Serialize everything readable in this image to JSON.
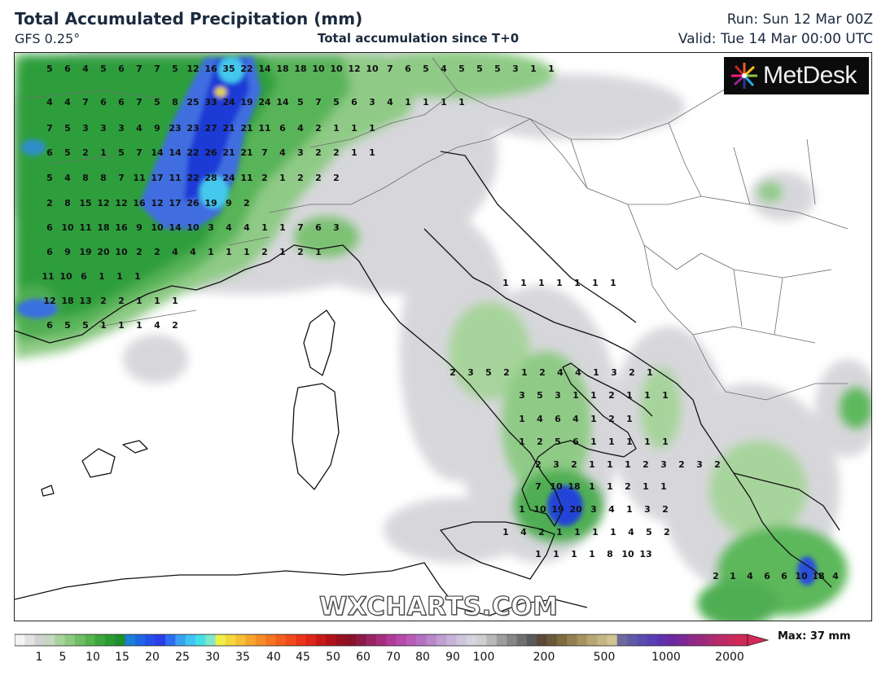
{
  "header": {
    "title": "Total Accumulated Precipitation (mm)",
    "model": "GFS 0.25°",
    "subtitle": "Total accumulation since T+0",
    "run": "Run: Sun 12 Mar 00Z",
    "valid": "Valid: Tue 14 Mar 00:00 UTC"
  },
  "logo": {
    "text": "MetDesk"
  },
  "watermark": "WXCHARTS.COM",
  "scale": {
    "max_label": "Max: 37 mm",
    "ticks": [
      "1",
      "5",
      "10",
      "15",
      "20",
      "25",
      "30",
      "35",
      "40",
      "45",
      "50",
      "60",
      "70",
      "80",
      "90",
      "100",
      "200",
      "500",
      "1000",
      "2000"
    ]
  },
  "map": {
    "values": [
      [
        "5",
        "6",
        "4",
        "5",
        "6",
        "7",
        "7",
        "5",
        "12",
        "16",
        "35",
        "22",
        "14",
        "18",
        "18",
        "10",
        "10",
        "12",
        "10",
        "7",
        "6",
        "5",
        "4",
        "5",
        "5",
        "5",
        "3",
        "1",
        "1"
      ],
      [
        "4",
        "4",
        "7",
        "6",
        "6",
        "7",
        "5",
        "8",
        "25",
        "33",
        "24",
        "19",
        "24",
        "14",
        "5",
        "7",
        "5",
        "6",
        "3",
        "4",
        "1",
        "1",
        "1",
        "1"
      ],
      [
        "7",
        "5",
        "3",
        "3",
        "3",
        "4",
        "9",
        "23",
        "23",
        "27",
        "21",
        "21",
        "11",
        "6",
        "4",
        "2",
        "1",
        "1",
        "1"
      ],
      [
        "6",
        "5",
        "2",
        "1",
        "5",
        "7",
        "14",
        "14",
        "22",
        "26",
        "21",
        "21",
        "7",
        "4",
        "3",
        "2",
        "2",
        "1",
        "1"
      ],
      [
        "5",
        "4",
        "8",
        "8",
        "7",
        "11",
        "17",
        "11",
        "22",
        "28",
        "24",
        "11",
        "2",
        "1",
        "2",
        "2",
        "2"
      ],
      [
        "2",
        "8",
        "15",
        "12",
        "12",
        "16",
        "12",
        "17",
        "26",
        "19",
        "9",
        "2"
      ],
      [
        "6",
        "10",
        "11",
        "18",
        "16",
        "9",
        "10",
        "14",
        "10",
        "3",
        "4",
        "4",
        "1",
        "1",
        "7",
        "6",
        "3"
      ],
      [
        "6",
        "9",
        "19",
        "20",
        "10",
        "2",
        "2",
        "4",
        "4",
        "1",
        "1",
        "1",
        "2",
        "1",
        "2",
        "1"
      ],
      [
        "11",
        "10",
        "6",
        "1",
        "1",
        "1"
      ],
      [
        "12",
        "18",
        "13",
        "2",
        "2",
        "1",
        "1",
        "1"
      ],
      [
        "6",
        "5",
        "5",
        "1",
        "1",
        "1",
        "4",
        "2"
      ],
      [
        "2",
        "3",
        "5",
        "2",
        "1",
        "2",
        "4",
        "4",
        "1",
        "3",
        "2",
        "1"
      ],
      [
        "3",
        "5",
        "3",
        "1",
        "1",
        "2",
        "1",
        "1",
        "1"
      ],
      [
        "1",
        "4",
        "6",
        "4",
        "1",
        "2",
        "1"
      ],
      [
        "1",
        "2",
        "5",
        "6",
        "1",
        "1",
        "1",
        "1",
        "1"
      ],
      [
        "2",
        "3",
        "2",
        "1",
        "1",
        "1",
        "2",
        "3",
        "2",
        "3",
        "2"
      ],
      [
        "7",
        "10",
        "18",
        "1",
        "1",
        "2",
        "1",
        "1"
      ],
      [
        "1",
        "10",
        "19",
        "20",
        "3",
        "4",
        "1",
        "3",
        "2"
      ],
      [
        "1",
        "4",
        "2",
        "1",
        "1",
        "1",
        "1",
        "4",
        "5",
        "2"
      ],
      [
        "1",
        "1",
        "1",
        "1",
        "8",
        "10",
        "13"
      ],
      [
        "2",
        "1",
        "4",
        "6",
        "6",
        "10",
        "18",
        "4"
      ],
      [
        "1",
        "1",
        "1",
        "1",
        "1",
        "1",
        "1"
      ]
    ]
  },
  "colors": {
    "map_bg": "#ffffff",
    "land_line": "#111111",
    "border_line": "#777777",
    "gray_precip": "#d4d4d8",
    "green_light": "#a7d49c",
    "green_mid": "#5cb85a",
    "green_dark": "#2a9a3a",
    "blue_light": "#4f8fe6",
    "blue_dark": "#1c2fd6",
    "cyan": "#4fd8f0",
    "yellow": "#f1e23a"
  }
}
